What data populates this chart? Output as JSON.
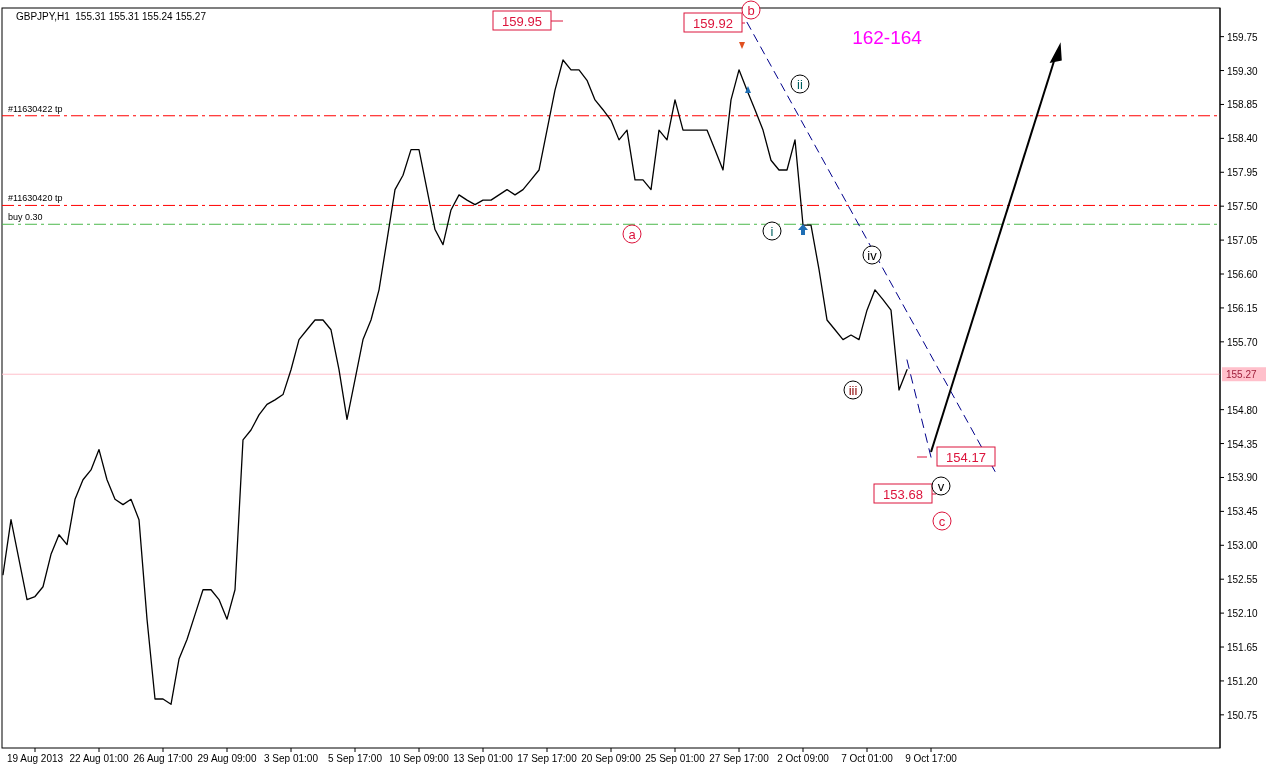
{
  "chart_data": {
    "type": "line",
    "title": "GBPJPY,H1  155.31 155.31 155.24 155.27",
    "categories": [
      null,
      null,
      null,
      null,
      "19 Aug 2013",
      null,
      null,
      null,
      null,
      null,
      null,
      null,
      "22 Aug 01:00",
      null,
      null,
      null,
      null,
      null,
      null,
      null,
      "26 Aug 17:00",
      null,
      null,
      null,
      null,
      null,
      null,
      null,
      "29 Aug 09:00",
      null,
      null,
      null,
      null,
      null,
      null,
      null,
      "3 Sep 01:00",
      null,
      null,
      null,
      null,
      null,
      null,
      null,
      "5 Sep 17:00",
      null,
      null,
      null,
      null,
      null,
      null,
      null,
      "10 Sep 09:00",
      null,
      null,
      null,
      null,
      null,
      null,
      null,
      "13 Sep 01:00",
      null,
      null,
      null,
      null,
      null,
      null,
      null,
      "17 Sep 17:00",
      null,
      null,
      null,
      null,
      null,
      null,
      null,
      "20 Sep 09:00",
      null,
      null,
      null,
      null,
      null,
      null,
      null,
      "25 Sep 01:00",
      null,
      null,
      null,
      null,
      null,
      null,
      null,
      "27 Sep 17:00",
      null,
      null,
      null,
      null,
      null,
      null,
      null,
      "2 Oct 09:00",
      null,
      null,
      null,
      null,
      null,
      null,
      null,
      "7 Oct 01:00",
      null,
      null,
      null,
      null,
      null,
      null,
      null,
      "9 Oct 17:00",
      null,
      null,
      null,
      null,
      null,
      null,
      null,
      null,
      null,
      null,
      null,
      null,
      null,
      null,
      null,
      null,
      null,
      null,
      null,
      null,
      null,
      null,
      null,
      null,
      null,
      null,
      null,
      null,
      null,
      null,
      null,
      null,
      null,
      null,
      null,
      null
    ],
    "series": [
      {
        "color": "#000000",
        "values": [
          152.61,
          153.34,
          152.81,
          152.28,
          152.32,
          152.45,
          152.88,
          153.14,
          153.01,
          153.61,
          153.87,
          154.0,
          154.27,
          153.87,
          153.61,
          153.54,
          153.61,
          153.34,
          152.02,
          150.96,
          150.96,
          150.89,
          151.49,
          151.75,
          152.08,
          152.41,
          152.41,
          152.28,
          152.02,
          152.41,
          154.4,
          154.53,
          154.73,
          154.87,
          154.93,
          155.0,
          155.33,
          155.73,
          155.86,
          155.99,
          155.99,
          155.86,
          155.33,
          154.67,
          155.2,
          155.73,
          155.99,
          156.39,
          157.05,
          157.72,
          157.91,
          158.25,
          158.25,
          157.72,
          157.19,
          156.99,
          157.45,
          157.65,
          157.58,
          157.52,
          157.58,
          157.58,
          157.65,
          157.72,
          157.65,
          157.72,
          157.85,
          157.98,
          158.51,
          159.04,
          159.44,
          159.31,
          159.31,
          159.17,
          158.91,
          158.78,
          158.64,
          158.38,
          158.51,
          157.85,
          157.85,
          157.72,
          158.51,
          158.38,
          158.91,
          158.51,
          158.51,
          158.51,
          158.51,
          158.25,
          157.98,
          158.91,
          159.31,
          159.04,
          158.78,
          158.51,
          158.11,
          157.98,
          157.98,
          158.38,
          157.25,
          157.25,
          156.66,
          155.99,
          155.86,
          155.73,
          155.79,
          155.73,
          156.12,
          156.39,
          156.26,
          156.12,
          155.06,
          155.33,
          null,
          null,
          null,
          null,
          null,
          null,
          null,
          null,
          null,
          null,
          null,
          null,
          null,
          null,
          null,
          null,
          null,
          null,
          null,
          null,
          null,
          null,
          null,
          null,
          null,
          null,
          null,
          null,
          null,
          null,
          null,
          null,
          null,
          null,
          null,
          null,
          null,
          null,
          null
        ]
      },
      {
        "color": "#00008b",
        "line_style": "dashed",
        "values": [
          null,
          null,
          null,
          null,
          null,
          null,
          null,
          null,
          null,
          null,
          null,
          null,
          null,
          null,
          null,
          null,
          null,
          null,
          null,
          null,
          null,
          null,
          null,
          null,
          null,
          null,
          null,
          null,
          null,
          null,
          null,
          null,
          null,
          null,
          null,
          null,
          null,
          null,
          null,
          null,
          null,
          null,
          null,
          null,
          null,
          null,
          null,
          null,
          null,
          null,
          null,
          null,
          null,
          null,
          null,
          null,
          null,
          null,
          null,
          null,
          null,
          null,
          null,
          null,
          null,
          null,
          null,
          null,
          null,
          null,
          null,
          null,
          null,
          null,
          null,
          null,
          null,
          null,
          null,
          null,
          null,
          null,
          null,
          null,
          null,
          null,
          null,
          null,
          null,
          null,
          null,
          null,
          null,
          159.94,
          null,
          null,
          null,
          null,
          null,
          null,
          null,
          null,
          null,
          null,
          null,
          null,
          null,
          null,
          null,
          null,
          null,
          null,
          null,
          null,
          null,
          null,
          null,
          null,
          null,
          null,
          null,
          null,
          null,
          null,
          153.98,
          null,
          null,
          null,
          null,
          null,
          null,
          null,
          null,
          null,
          null,
          null,
          null,
          null,
          null,
          null,
          null,
          null,
          null,
          null,
          null,
          null,
          null,
          null,
          null,
          null,
          null,
          null,
          null
        ]
      },
      {
        "color": "#00008b",
        "line_style": "dashed",
        "values": [
          null,
          null,
          null,
          null,
          null,
          null,
          null,
          null,
          null,
          null,
          null,
          null,
          null,
          null,
          null,
          null,
          null,
          null,
          null,
          null,
          null,
          null,
          null,
          null,
          null,
          null,
          null,
          null,
          null,
          null,
          null,
          null,
          null,
          null,
          null,
          null,
          null,
          null,
          null,
          null,
          null,
          null,
          null,
          null,
          null,
          null,
          null,
          null,
          null,
          null,
          null,
          null,
          null,
          null,
          null,
          null,
          null,
          null,
          null,
          null,
          null,
          null,
          null,
          null,
          null,
          null,
          null,
          null,
          null,
          null,
          null,
          null,
          null,
          null,
          null,
          null,
          null,
          null,
          null,
          null,
          null,
          null,
          null,
          null,
          null,
          null,
          null,
          null,
          null,
          null,
          null,
          null,
          null,
          null,
          null,
          null,
          null,
          null,
          null,
          null,
          null,
          null,
          null,
          null,
          null,
          null,
          null,
          null,
          null,
          null,
          null,
          null,
          null,
          155.46,
          null,
          null,
          154.17,
          null,
          null,
          null,
          null,
          null,
          null,
          null,
          null,
          null,
          null,
          null,
          null,
          null,
          null,
          null,
          null,
          null,
          null,
          null,
          null,
          null,
          null,
          null,
          null,
          null,
          null,
          null,
          null,
          null,
          null,
          null,
          null,
          null,
          null,
          null,
          null
        ]
      }
    ],
    "ylim": [
      150.31,
      160.13
    ],
    "yticks": [
      150.75,
      {
        "value": 151.2,
        "label": "151.20"
      },
      151.65,
      {
        "value": 152.1,
        "label": "152.10"
      },
      152.55,
      {
        "value": 153,
        "label": "153.00"
      },
      153.45,
      {
        "value": 153.9,
        "label": "153.90"
      },
      154.35,
      {
        "value": 154.8,
        "label": "154.80"
      },
      {
        "value": 155.25,
        "label": null
      },
      {
        "value": 155.7,
        "label": "155.70"
      },
      156.15,
      {
        "value": 156.6,
        "label": "156.60"
      },
      157.05,
      {
        "value": 157.5,
        "label": "157.50"
      },
      157.95,
      {
        "value": 158.4,
        "label": "158.40"
      },
      158.85,
      {
        "value": 159.3,
        "label": "159.30"
      },
      159.75
    ],
    "ref_lines": [
      {
        "axis": "y",
        "value": 158.7,
        "label": "#11630422 tp",
        "color": "#ff0000",
        "line_style": "dashed"
      },
      {
        "axis": "y",
        "value": 157.51,
        "label": "#11630420 tp",
        "color": "#ff0000",
        "line_style": "dashed"
      },
      {
        "axis": "y",
        "value": 157.26,
        "label": "buy 0.30",
        "color": "#4cb84c",
        "line_style": "dashed"
      },
      {
        "axis": "y",
        "value": 155.27,
        "label": "155.27",
        "color": "#ffc0cb",
        "line_style": "solid"
      }
    ],
    "annotations": [
      "159.95",
      "159.92",
      "154.17",
      "153.68",
      "162-164",
      "a",
      "b",
      "i",
      "ii",
      "iii",
      "iv",
      "v",
      "c"
    ],
    "grid": false,
    "marker": "none",
    "line_style": "solid"
  }
}
